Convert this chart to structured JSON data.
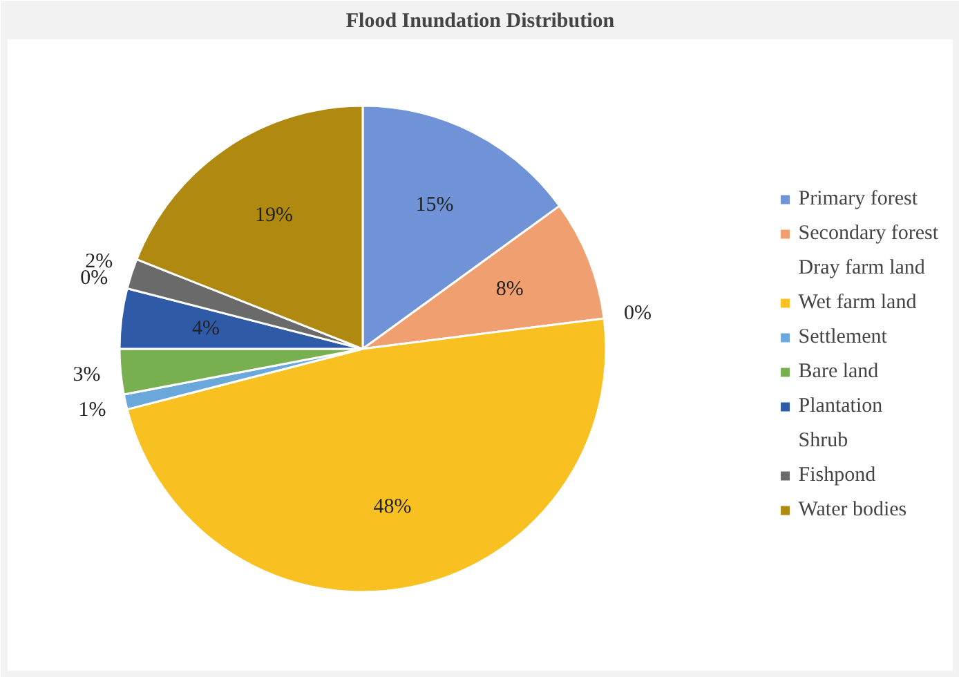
{
  "chart_data": {
    "type": "pie",
    "title": "Flood Inundation Distribution",
    "categories": [
      "Primary forest",
      "Secondary forest",
      "Dray farm land",
      "Wet farm land",
      "Settlement",
      "Bare land",
      "Plantation",
      "Shrub",
      "Fishpond",
      "Water bodies"
    ],
    "values": [
      15,
      8,
      0,
      48,
      1,
      3,
      4,
      0,
      2,
      19
    ],
    "value_labels": [
      "15%",
      "8%",
      "0%",
      "48%",
      "1%",
      "3%",
      "4%",
      "0%",
      "2%",
      "19%"
    ],
    "colors": [
      "#6f93d6",
      "#f0a070",
      "#b0b0b0",
      "#f8c020",
      "#6aa8dc",
      "#78b050",
      "#2f5aa8",
      "#b04a10",
      "#6a6a6a",
      "#b08a10"
    ],
    "legend": "right"
  }
}
